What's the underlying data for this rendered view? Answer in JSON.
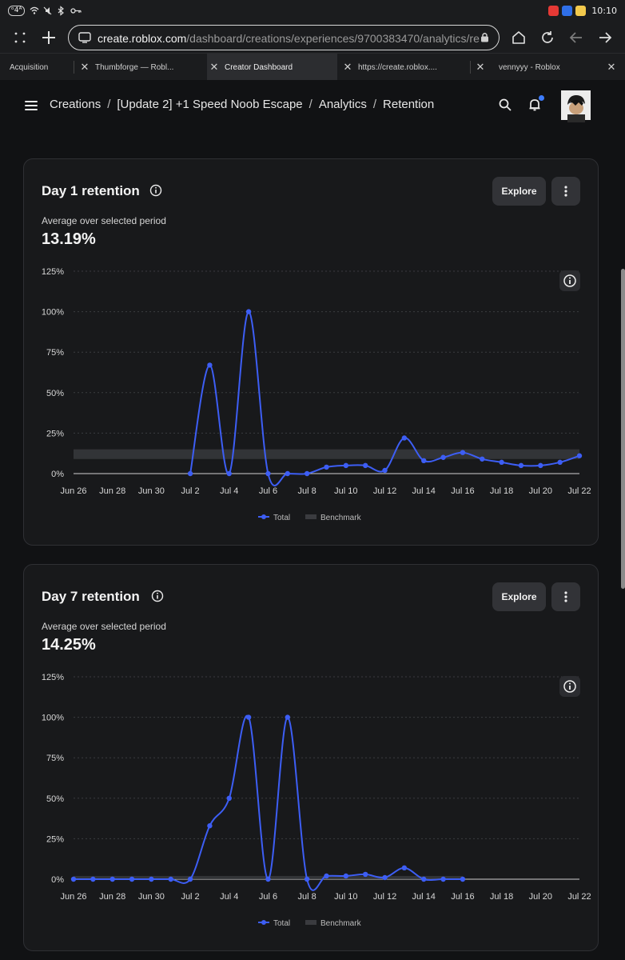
{
  "status_bar": {
    "network_label": "ᵒ4ᴬ",
    "time": "10:10"
  },
  "browser": {
    "url_host": "create.roblox.com",
    "url_path": "/dashboard/creations/experiences/9700383470/analytics/re",
    "tabs": [
      {
        "label": "Acquisition"
      },
      {
        "label": "Thumbforge — Robl..."
      },
      {
        "label": "Creator Dashboard"
      },
      {
        "label": "https://create.roblox...."
      },
      {
        "label": "vennyyy - Roblox"
      }
    ]
  },
  "header": {
    "breadcrumbs": [
      "Creations",
      "[Update 2] +1 Speed Noob Escape",
      "Analytics",
      "Retention"
    ]
  },
  "cards": [
    {
      "title": "Day 1 retention",
      "explore_label": "Explore",
      "avg_label": "Average over selected period",
      "avg_value": "13.19%"
    },
    {
      "title": "Day 7 retention",
      "explore_label": "Explore",
      "avg_label": "Average over selected period",
      "avg_value": "14.25%"
    }
  ],
  "chart_data": [
    {
      "type": "line",
      "x_tick_labels": [
        "Jun 26",
        "Jun 28",
        "Jun 30",
        "Jul 2",
        "Jul 4",
        "Jul 6",
        "Jul 8",
        "Jul 10",
        "Jul 12",
        "Jul 14",
        "Jul 16",
        "Jul 18",
        "Jul 20",
        "Jul 22"
      ],
      "y_tick_labels": [
        "0%",
        "25%",
        "50%",
        "75%",
        "100%",
        "125%"
      ],
      "ylim": [
        0,
        125
      ],
      "grid": true,
      "legend": [
        "Total",
        "Benchmark"
      ],
      "legend_position": "bottom-center",
      "colors": {
        "total": "#3d5ef5",
        "benchmark": "#3a3b3f"
      },
      "series": [
        {
          "name": "Total",
          "x": [
            "Jul 2",
            "Jul 3",
            "Jul 4",
            "Jul 5",
            "Jul 6",
            "Jul 7",
            "Jul 8",
            "Jul 9",
            "Jul 10",
            "Jul 11",
            "Jul 12",
            "Jul 13",
            "Jul 14",
            "Jul 15",
            "Jul 16",
            "Jul 17",
            "Jul 18",
            "Jul 19",
            "Jul 20",
            "Jul 21",
            "Jul 22"
          ],
          "values": [
            0,
            67,
            0,
            100,
            0,
            0,
            0,
            4,
            5,
            5,
            2,
            22,
            8,
            10,
            13,
            9,
            7,
            5,
            5,
            7,
            11
          ]
        },
        {
          "name": "Benchmark",
          "x": [
            "Jun 26",
            "Jul 22"
          ],
          "values_low": [
            9,
            9
          ],
          "values_high": [
            15,
            15
          ]
        }
      ]
    },
    {
      "type": "line",
      "x_tick_labels": [
        "Jun 26",
        "Jun 28",
        "Jun 30",
        "Jul 2",
        "Jul 4",
        "Jul 6",
        "Jul 8",
        "Jul 10",
        "Jul 12",
        "Jul 14",
        "Jul 16",
        "Jul 18",
        "Jul 20",
        "Jul 22"
      ],
      "y_tick_labels": [
        "0%",
        "25%",
        "50%",
        "75%",
        "100%",
        "125%"
      ],
      "ylim": [
        0,
        125
      ],
      "grid": true,
      "legend": [
        "Total",
        "Benchmark"
      ],
      "legend_position": "bottom-center",
      "colors": {
        "total": "#3d5ef5",
        "benchmark": "#3a3b3f"
      },
      "series": [
        {
          "name": "Total",
          "x": [
            "Jun 26",
            "Jun 27",
            "Jun 28",
            "Jun 29",
            "Jun 30",
            "Jul 1",
            "Jul 2",
            "Jul 3",
            "Jul 4",
            "Jul 5",
            "Jul 6",
            "Jul 7",
            "Jul 8",
            "Jul 9",
            "Jul 10",
            "Jul 11",
            "Jul 12",
            "Jul 13",
            "Jul 14",
            "Jul 15",
            "Jul 16"
          ],
          "values": [
            0,
            0,
            0,
            0,
            0,
            0,
            0,
            33,
            50,
            100,
            0,
            100,
            0,
            2,
            2,
            3,
            1,
            7,
            0,
            0,
            0
          ]
        },
        {
          "name": "Benchmark",
          "x": [
            "Jun 26",
            "Jul 16"
          ],
          "values_low": [
            0,
            0
          ],
          "values_high": [
            2,
            2
          ]
        }
      ]
    }
  ]
}
